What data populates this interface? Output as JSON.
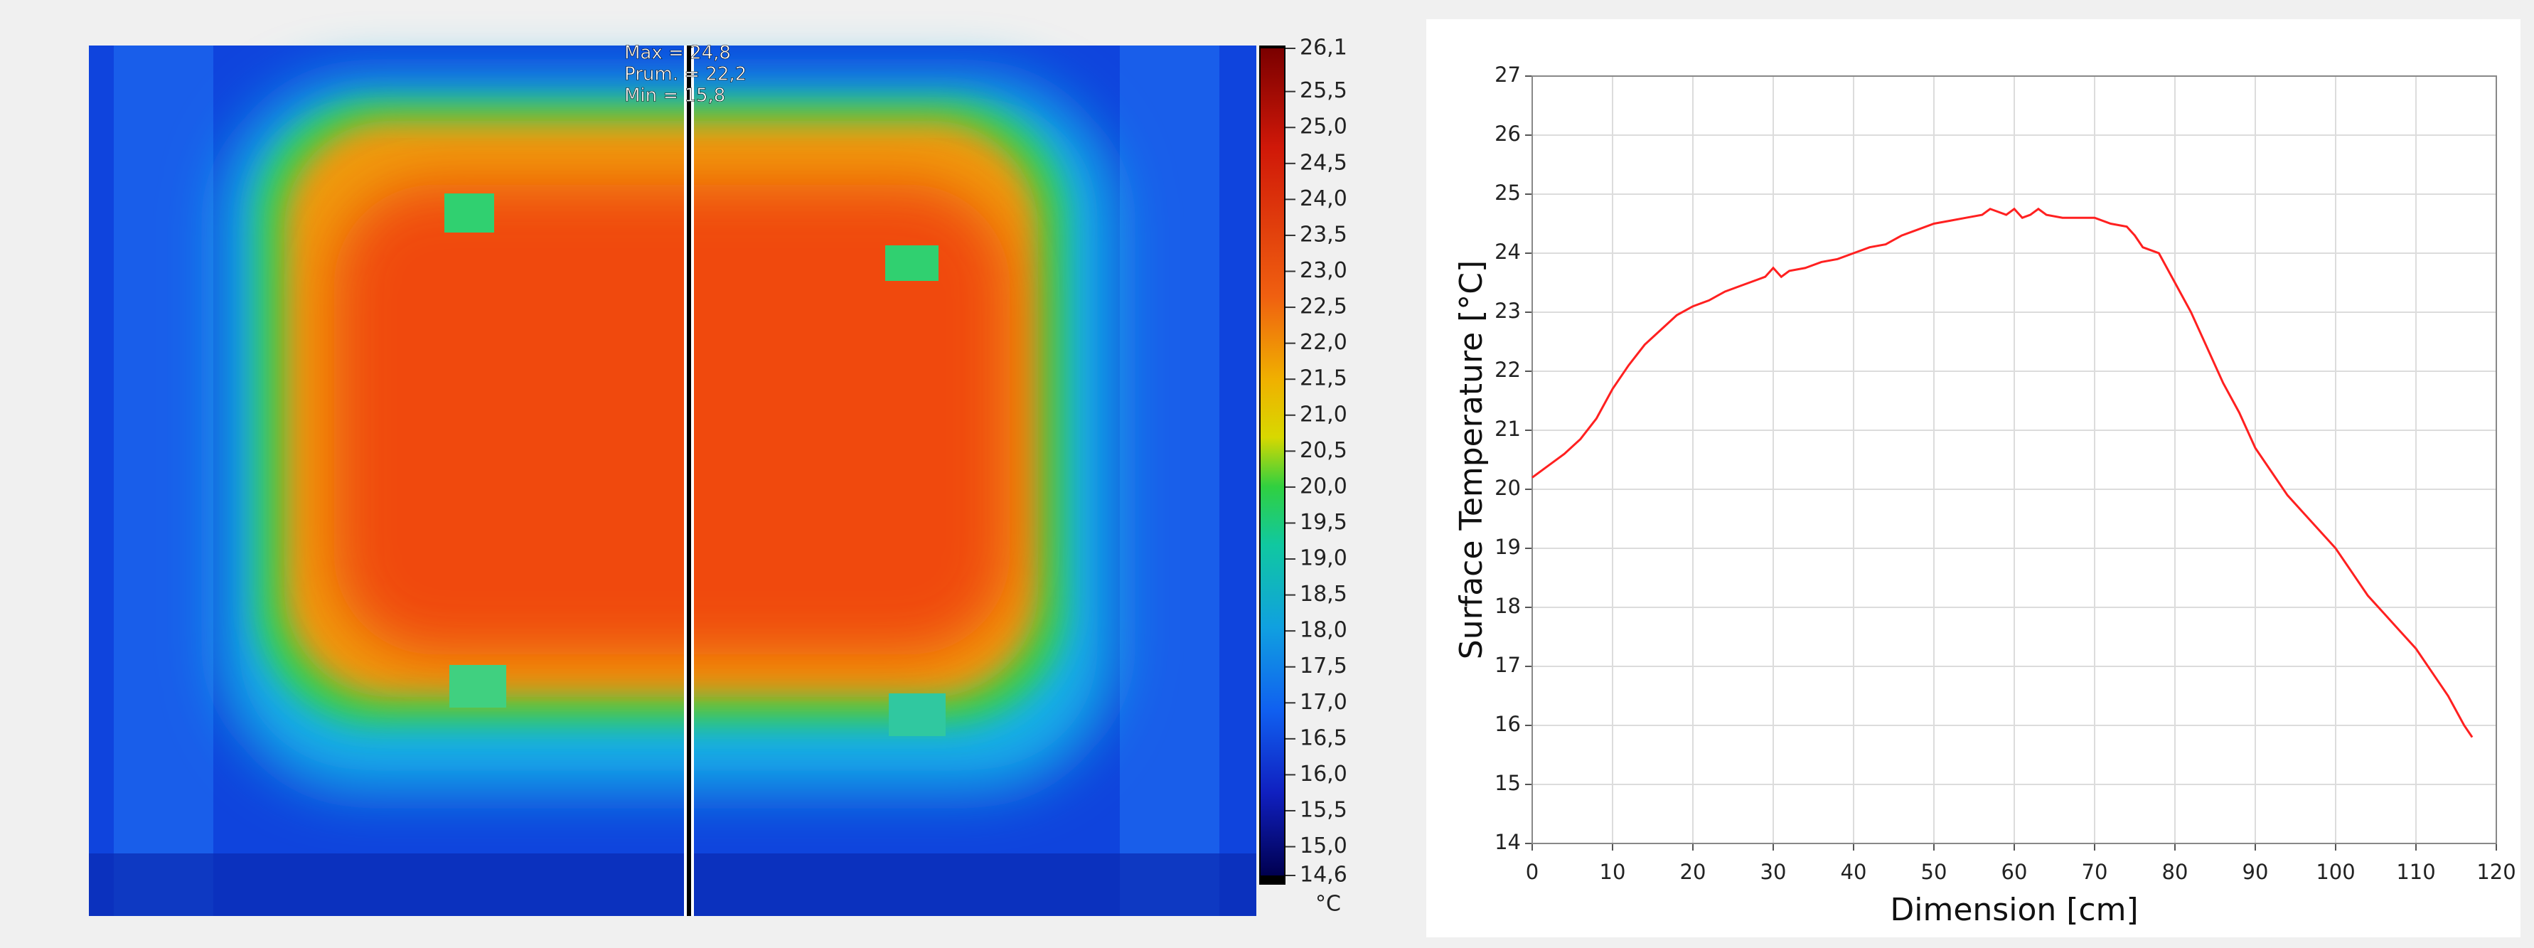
{
  "thermal_image": {
    "annotations": [
      "Max = 24,8",
      "Prum. = 22,2",
      "Min = 15,8"
    ],
    "colorbar": {
      "ticks": [
        {
          "value": 26.1,
          "label": "26,1"
        },
        {
          "value": 25.5,
          "label": "25,5"
        },
        {
          "value": 25,
          "label": "25,0"
        },
        {
          "value": 24.5,
          "label": "24,5"
        },
        {
          "value": 24,
          "label": "24,0"
        },
        {
          "value": 23.5,
          "label": "23,5"
        },
        {
          "value": 23,
          "label": "23,0"
        },
        {
          "value": 22.5,
          "label": "22,5"
        },
        {
          "value": 22,
          "label": "22,0"
        },
        {
          "value": 21.5,
          "label": "21,5"
        },
        {
          "value": 21,
          "label": "21,0"
        },
        {
          "value": 20.5,
          "label": "20,5"
        },
        {
          "value": 20,
          "label": "20,0"
        },
        {
          "value": 19.5,
          "label": "19,5"
        },
        {
          "value": 19,
          "label": "19,0"
        },
        {
          "value": 18.5,
          "label": "18,5"
        },
        {
          "value": 18,
          "label": "18,0"
        },
        {
          "value": 17.5,
          "label": "17,5"
        },
        {
          "value": 17,
          "label": "17,0"
        },
        {
          "value": 16.5,
          "label": "16,5"
        },
        {
          "value": 16,
          "label": "16,0"
        },
        {
          "value": 15.5,
          "label": "15,5"
        },
        {
          "value": 15,
          "label": "15,0"
        },
        {
          "value": 14.6,
          "label": "14,6"
        }
      ],
      "unit": "°C"
    }
  },
  "chart_data": {
    "type": "line",
    "x_label": "Dimension [cm]",
    "y_label": "Surface Temperature [°C]",
    "color": "#ff2020",
    "grid": true,
    "xlim": [
      0,
      120
    ],
    "xticks": [
      0,
      10,
      20,
      30,
      40,
      50,
      60,
      70,
      80,
      90,
      100,
      110,
      120
    ],
    "ylim": [
      14,
      27
    ],
    "yticks": [
      14,
      15,
      16,
      17,
      18,
      19,
      20,
      21,
      22,
      23,
      24,
      25,
      26,
      27
    ],
    "x": [
      0,
      2,
      4,
      6,
      8,
      10,
      12,
      14,
      16,
      18,
      20,
      22,
      24,
      26,
      28,
      29,
      30,
      31,
      32,
      34,
      36,
      38,
      40,
      42,
      44,
      46,
      48,
      50,
      52,
      54,
      56,
      57,
      58,
      59,
      60,
      61,
      62,
      63,
      64,
      66,
      68,
      70,
      72,
      74,
      75,
      76,
      78,
      80,
      82,
      84,
      86,
      88,
      90,
      92,
      94,
      96,
      98,
      100,
      102,
      104,
      106,
      108,
      110,
      112,
      114,
      116,
      117
    ],
    "values": [
      20.2,
      20.4,
      20.6,
      20.85,
      21.2,
      21.7,
      22.1,
      22.45,
      22.7,
      22.95,
      23.1,
      23.2,
      23.35,
      23.45,
      23.55,
      23.6,
      23.75,
      23.6,
      23.7,
      23.75,
      23.85,
      23.9,
      24.0,
      24.1,
      24.15,
      24.3,
      24.4,
      24.5,
      24.55,
      24.6,
      24.65,
      24.75,
      24.7,
      24.65,
      24.75,
      24.6,
      24.65,
      24.75,
      24.65,
      24.6,
      24.6,
      24.6,
      24.5,
      24.45,
      24.3,
      24.1,
      24.0,
      23.5,
      23.0,
      22.4,
      21.8,
      21.3,
      20.7,
      20.3,
      19.9,
      19.6,
      19.3,
      19.0,
      18.6,
      18.2,
      17.9,
      17.6,
      17.3,
      16.9,
      16.5,
      16.0,
      15.8
    ]
  }
}
